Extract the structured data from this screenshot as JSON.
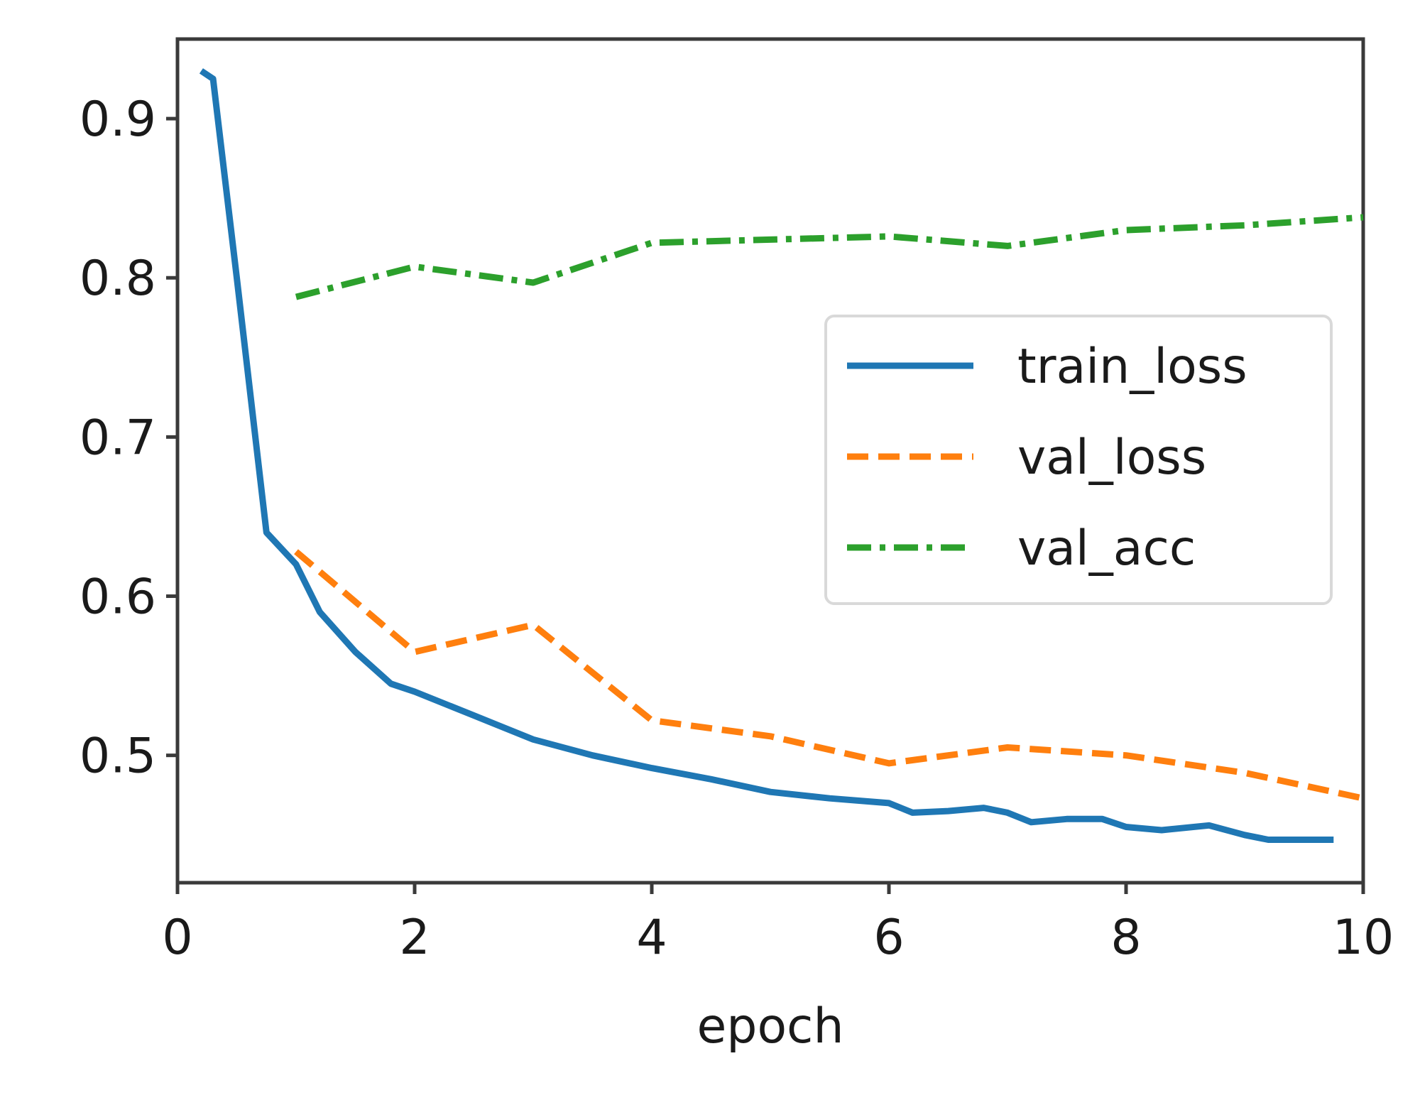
{
  "chart_data": {
    "type": "line",
    "title": "",
    "xlabel": "epoch",
    "ylabel": "",
    "xlim": [
      0,
      10
    ],
    "ylim": [
      0.42,
      0.95
    ],
    "x_ticks": [
      0,
      2,
      4,
      6,
      8,
      10
    ],
    "y_ticks": [
      0.5,
      0.6,
      0.7,
      0.8,
      0.9
    ],
    "legend_position": "center-right",
    "grid": false,
    "series": [
      {
        "name": "train_loss",
        "color": "#1f77b4",
        "style": "solid",
        "x": [
          0.2,
          0.3,
          0.5,
          0.75,
          1.0,
          1.2,
          1.5,
          1.8,
          2.0,
          2.5,
          3.0,
          3.5,
          4.0,
          4.5,
          5.0,
          5.5,
          6.0,
          6.2,
          6.5,
          6.8,
          7.0,
          7.2,
          7.5,
          7.8,
          8.0,
          8.3,
          8.7,
          9.0,
          9.2,
          9.5,
          9.75
        ],
        "y": [
          0.93,
          0.925,
          0.8,
          0.64,
          0.62,
          0.59,
          0.565,
          0.545,
          0.54,
          0.525,
          0.51,
          0.5,
          0.492,
          0.485,
          0.477,
          0.473,
          0.47,
          0.464,
          0.465,
          0.467,
          0.464,
          0.458,
          0.46,
          0.46,
          0.455,
          0.453,
          0.456,
          0.45,
          0.447,
          0.447,
          0.447
        ]
      },
      {
        "name": "val_loss",
        "color": "#ff7f0e",
        "style": "dashed",
        "x": [
          1,
          2,
          3,
          4,
          5,
          6,
          7,
          8,
          9,
          10
        ],
        "y": [
          0.628,
          0.565,
          0.582,
          0.522,
          0.512,
          0.495,
          0.505,
          0.5,
          0.489,
          0.473
        ]
      },
      {
        "name": "val_acc",
        "color": "#2ca02c",
        "style": "dashdot",
        "x": [
          1,
          2,
          3,
          4,
          5,
          6,
          7,
          8,
          9,
          10
        ],
        "y": [
          0.788,
          0.807,
          0.797,
          0.822,
          0.824,
          0.826,
          0.82,
          0.83,
          0.833,
          0.838
        ]
      }
    ]
  }
}
